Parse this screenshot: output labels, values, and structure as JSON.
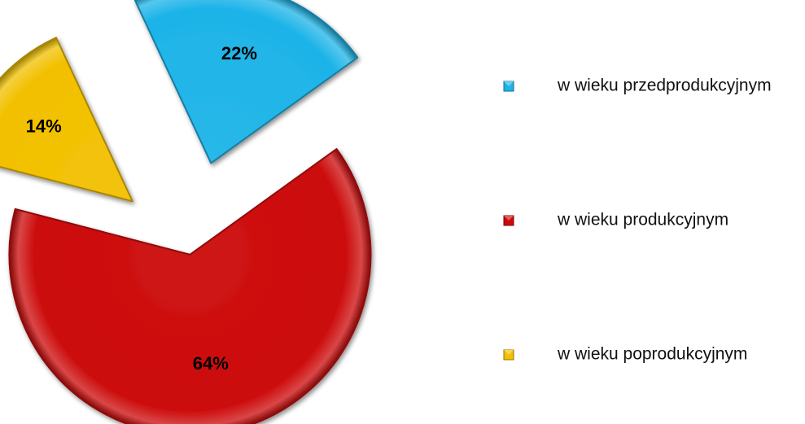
{
  "chart_data": {
    "type": "pie",
    "exploded": true,
    "legend_position": "right",
    "slices": [
      {
        "label": "w wieku przedprodukcyjnym",
        "value": 22,
        "display": "22%",
        "color": "#1EB4E8"
      },
      {
        "label": "w wieku produkcyjnym",
        "value": 64,
        "display": "64%",
        "color": "#CC0A0A"
      },
      {
        "label": "w wieku poprodukcyjnym",
        "value": 14,
        "display": "14%",
        "color": "#F2C000"
      }
    ]
  }
}
